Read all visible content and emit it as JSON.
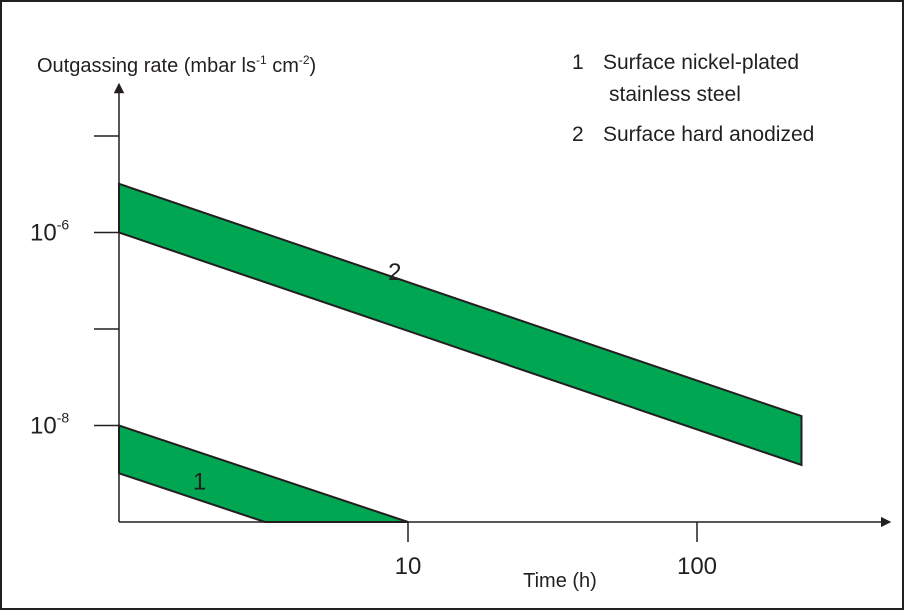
{
  "chart_data": {
    "type": "area",
    "ylabel": "Outgassing rate (mbar ls",
    "ylabel_sup1": "-1",
    "ylabel_mid": " cm",
    "ylabel_sup2": "-2",
    "ylabel_end": ")",
    "xlabel": "Time (h)",
    "x_scale": "log",
    "y_scale": "log",
    "x_ticks": [
      {
        "value": 1,
        "label": ""
      },
      {
        "value": 10,
        "label": "10"
      },
      {
        "value": 100,
        "label": "100"
      }
    ],
    "y_ticks": [
      {
        "value": 1e-09,
        "base": "",
        "exp": ""
      },
      {
        "value": 1e-08,
        "base": "10",
        "exp": "-8"
      },
      {
        "value": 1e-07,
        "base": "",
        "exp": ""
      },
      {
        "value": 1e-06,
        "base": "10",
        "exp": "-6"
      },
      {
        "value": 1e-05,
        "base": "",
        "exp": ""
      }
    ],
    "xlim": [
      1,
      300
    ],
    "ylim": [
      1e-09,
      2e-05
    ],
    "series": [
      {
        "label": "1",
        "color": "#00a651",
        "upper": [
          [
            1,
            1e-08
          ],
          [
            10,
            1e-09
          ]
        ],
        "lower": [
          [
            1,
            3.2e-09
          ],
          [
            3.2,
            1e-09
          ],
          [
            10,
            1e-09
          ]
        ]
      },
      {
        "label": "2",
        "color": "#00a651",
        "upper": [
          [
            1,
            3.2e-06
          ],
          [
            230,
            1.25e-08
          ]
        ],
        "lower": [
          [
            1,
            1e-06
          ],
          [
            230,
            3.9e-09
          ]
        ]
      }
    ],
    "legend": {
      "placement": "top-right",
      "items": [
        {
          "num": "1",
          "line1": "Surface nickel-plated",
          "line2": "stainless steel"
        },
        {
          "num": "2",
          "line1": "Surface hard anodized",
          "line2": ""
        }
      ]
    },
    "grid": false
  }
}
